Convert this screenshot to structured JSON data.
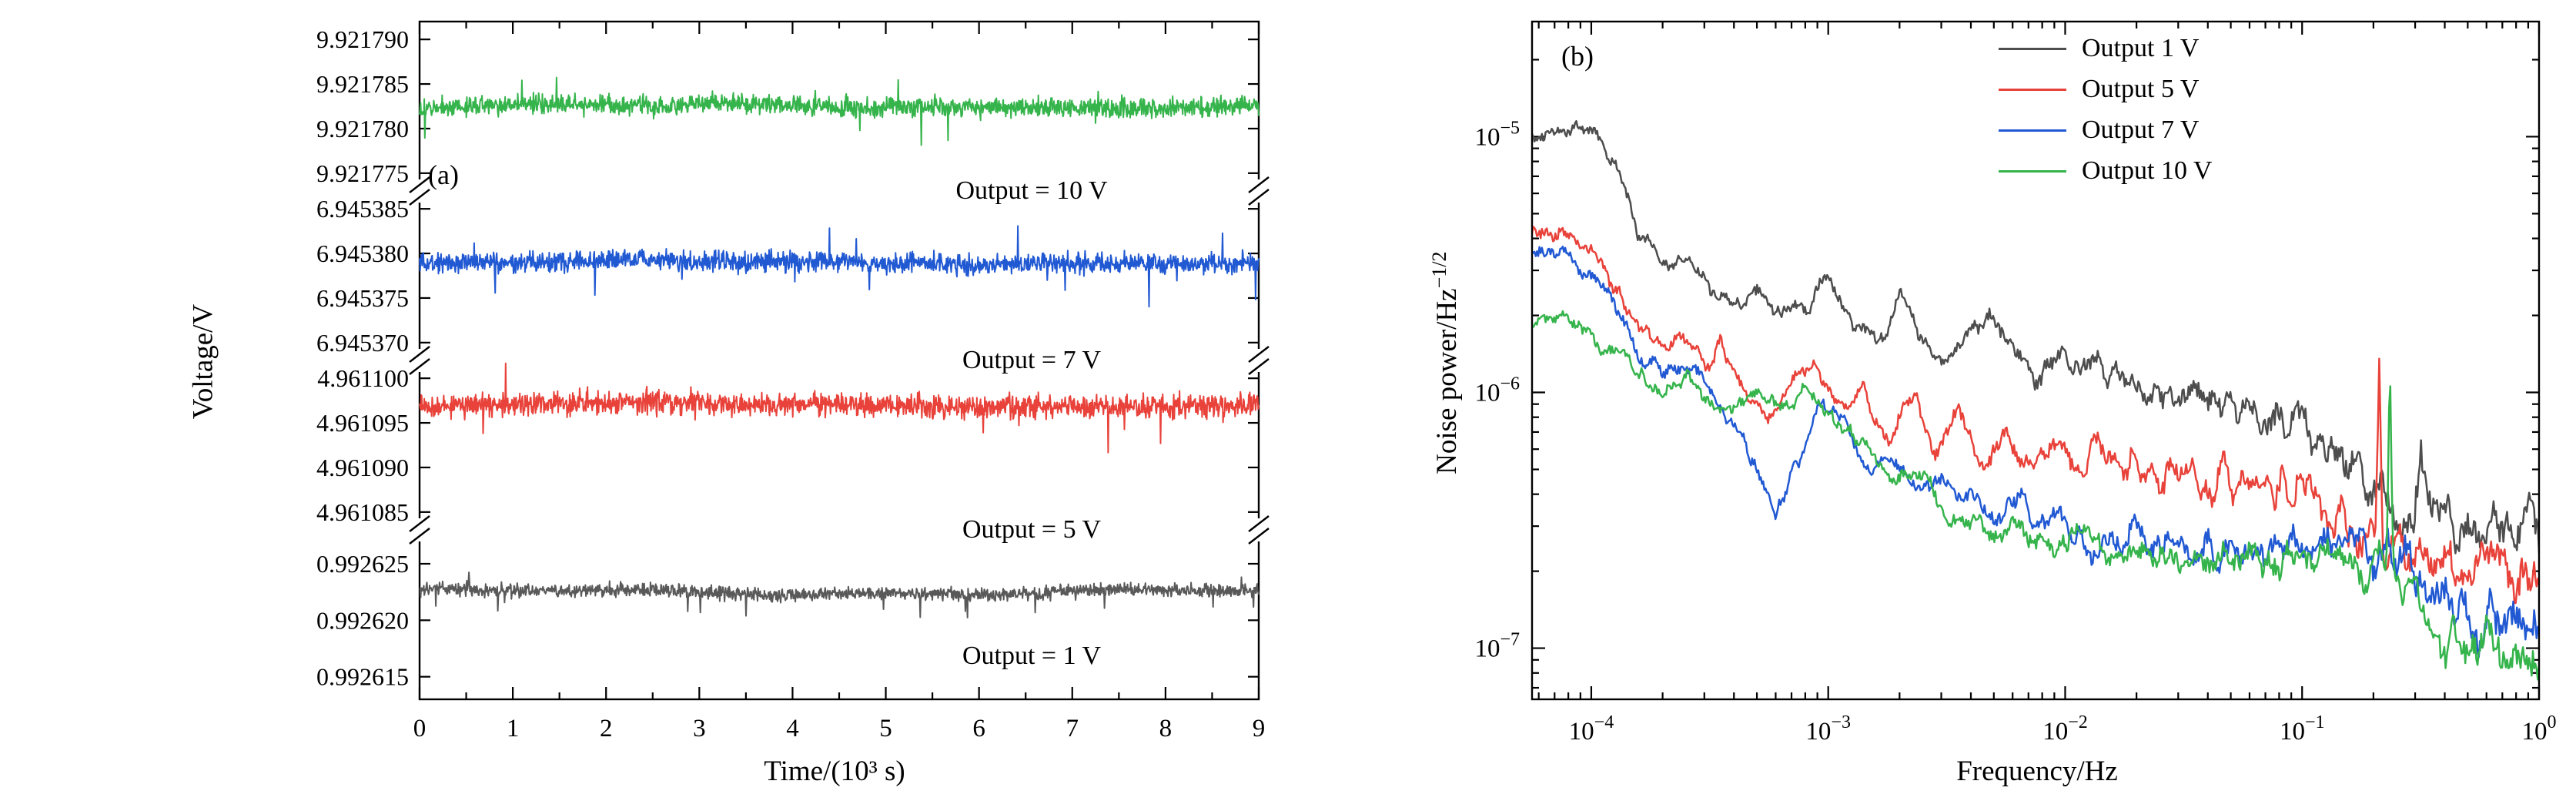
{
  "figure": {
    "background": "#ffffff",
    "description": "Two-panel noise characterization figure: (a) voltage time traces at four output levels on a broken y-axis, (b) noise power spectral density vs frequency on log-log axes"
  },
  "chart_data": [
    {
      "type": "line",
      "panel": "a",
      "tag": "(a)",
      "title": "",
      "xlabel": "Time/(10³ s)",
      "ylabel": "Voltage/V",
      "x_range": [
        0,
        9
      ],
      "x_ticks": [
        0,
        1,
        2,
        3,
        4,
        5,
        6,
        7,
        8,
        9
      ],
      "broken_axis": true,
      "segments": [
        {
          "label": "Output = 10 V",
          "color": "#36b44c",
          "mean_V": 9.9217825,
          "noise_uV": 0.55,
          "spike_down": 0.55,
          "range_V": [
            9.921773,
            9.921792
          ],
          "tick_values": [
            9.92179,
            9.921785,
            9.92178,
            9.921775
          ],
          "tick_labels": [
            "9.921790",
            "9.921785",
            "9.921780",
            "9.921775"
          ],
          "seed": 11
        },
        {
          "label": "Output = 7 V",
          "color": "#2159d3",
          "mean_V": 6.945379,
          "noise_uV": 0.55,
          "spike_down": 0.55,
          "range_V": [
            6.945368,
            6.945387
          ],
          "tick_values": [
            6.945385,
            6.94538,
            6.945375,
            6.94537
          ],
          "tick_labels": [
            "6.945385",
            "6.945380",
            "6.945375",
            "6.945370"
          ],
          "seed": 22
        },
        {
          "label": "Output = 5 V",
          "color": "#e8423a",
          "mean_V": 4.961097,
          "noise_uV": 0.65,
          "spike_down": 0.8,
          "range_V": [
            4.961083,
            4.961102
          ],
          "tick_values": [
            4.9611,
            4.961095,
            4.96109,
            4.961085
          ],
          "tick_labels": [
            "4.961100",
            "4.961095",
            "4.961090",
            "4.961085"
          ],
          "seed": 33
        },
        {
          "label": "Output = 1 V",
          "color": "#595959",
          "mean_V": 0.9926225,
          "noise_uV": 0.28,
          "spike_down": 0.6,
          "range_V": [
            0.992613,
            0.992628
          ],
          "tick_values": [
            0.992625,
            0.99262,
            0.992615
          ],
          "tick_labels": [
            "0.992625",
            "0.992620",
            "0.992615"
          ],
          "seed": 44
        }
      ]
    },
    {
      "type": "line",
      "panel": "b",
      "tag": "(b)",
      "title": "",
      "xlabel": "Frequency/Hz",
      "ylabel_base": "Noise power/Hz",
      "ylabel_sup": "−1/2",
      "x_scale": "log",
      "y_scale": "log",
      "x_log_range": [
        -4.25,
        0
      ],
      "y_log_range": [
        -7.2,
        -4.55
      ],
      "x_tick_exponents": [
        -4,
        -3,
        -2,
        -1,
        0
      ],
      "y_tick_exponents": [
        -5,
        -6,
        -7
      ],
      "legend_position": "top-right",
      "series": [
        {
          "legend": "Output 1 V",
          "color": "#4d4d4d",
          "seed": 71,
          "points_log10": [
            [
              -4.25,
              -5.02
            ],
            [
              -4.1,
              -4.99
            ],
            [
              -4.0,
              -4.98
            ],
            [
              -3.92,
              -5.05
            ],
            [
              -3.8,
              -5.35
            ],
            [
              -3.7,
              -5.52
            ],
            [
              -3.6,
              -5.46
            ],
            [
              -3.5,
              -5.58
            ],
            [
              -3.4,
              -5.66
            ],
            [
              -3.3,
              -5.6
            ],
            [
              -3.2,
              -5.72
            ],
            [
              -3.1,
              -5.65
            ],
            [
              -3.0,
              -5.55
            ],
            [
              -2.9,
              -5.72
            ],
            [
              -2.8,
              -5.82
            ],
            [
              -2.7,
              -5.62
            ],
            [
              -2.6,
              -5.8
            ],
            [
              -2.5,
              -5.88
            ],
            [
              -2.4,
              -5.78
            ],
            [
              -2.3,
              -5.72
            ],
            [
              -2.2,
              -5.88
            ],
            [
              -2.1,
              -5.92
            ],
            [
              -2.0,
              -5.88
            ],
            [
              -1.9,
              -5.92
            ],
            [
              -1.8,
              -5.95
            ],
            [
              -1.7,
              -5.98
            ],
            [
              -1.6,
              -6.0
            ],
            [
              -1.5,
              -6.02
            ],
            [
              -1.4,
              -6.02
            ],
            [
              -1.3,
              -6.05
            ],
            [
              -1.2,
              -6.08
            ],
            [
              -1.1,
              -6.1
            ],
            [
              -1.0,
              -6.1
            ],
            [
              -0.9,
              -6.18
            ],
            [
              -0.8,
              -6.28
            ],
            [
              -0.7,
              -6.38
            ],
            [
              -0.6,
              -6.45
            ],
            [
              -0.53,
              -6.46
            ],
            [
              -0.5,
              -6.15
            ],
            [
              -0.47,
              -6.48
            ],
            [
              -0.4,
              -6.5
            ],
            [
              -0.3,
              -6.52
            ],
            [
              -0.2,
              -6.5
            ],
            [
              -0.1,
              -6.52
            ],
            [
              0.0,
              -6.52
            ]
          ]
        },
        {
          "legend": "Output 5 V",
          "color": "#e8423a",
          "seed": 72,
          "points_log10": [
            [
              -4.25,
              -5.37
            ],
            [
              -4.1,
              -5.38
            ],
            [
              -4.0,
              -5.44
            ],
            [
              -3.9,
              -5.58
            ],
            [
              -3.8,
              -5.72
            ],
            [
              -3.7,
              -5.82
            ],
            [
              -3.6,
              -5.78
            ],
            [
              -3.52,
              -5.88
            ],
            [
              -3.45,
              -5.8
            ],
            [
              -3.35,
              -6.0
            ],
            [
              -3.25,
              -6.1
            ],
            [
              -3.15,
              -5.95
            ],
            [
              -3.05,
              -5.9
            ],
            [
              -2.95,
              -6.08
            ],
            [
              -2.85,
              -5.98
            ],
            [
              -2.75,
              -6.18
            ],
            [
              -2.65,
              -6.02
            ],
            [
              -2.55,
              -6.22
            ],
            [
              -2.45,
              -6.08
            ],
            [
              -2.35,
              -6.28
            ],
            [
              -2.25,
              -6.15
            ],
            [
              -2.15,
              -6.3
            ],
            [
              -2.05,
              -6.18
            ],
            [
              -1.95,
              -6.32
            ],
            [
              -1.85,
              -6.2
            ],
            [
              -1.75,
              -6.32
            ],
            [
              -1.65,
              -6.25
            ],
            [
              -1.55,
              -6.35
            ],
            [
              -1.45,
              -6.28
            ],
            [
              -1.35,
              -6.38
            ],
            [
              -1.25,
              -6.32
            ],
            [
              -1.15,
              -6.4
            ],
            [
              -1.05,
              -6.38
            ],
            [
              -0.95,
              -6.45
            ],
            [
              -0.85,
              -6.5
            ],
            [
              -0.75,
              -6.55
            ],
            [
              -0.69,
              -6.56
            ],
            [
              -0.675,
              -5.92
            ],
            [
              -0.66,
              -6.57
            ],
            [
              -0.55,
              -6.6
            ],
            [
              -0.45,
              -6.65
            ],
            [
              -0.35,
              -6.68
            ],
            [
              -0.25,
              -6.7
            ],
            [
              -0.15,
              -6.72
            ],
            [
              0.0,
              -6.74
            ]
          ]
        },
        {
          "legend": "Output 7 V",
          "color": "#2159d3",
          "seed": 73,
          "points_log10": [
            [
              -4.25,
              -5.44
            ],
            [
              -4.1,
              -5.47
            ],
            [
              -4.0,
              -5.55
            ],
            [
              -3.9,
              -5.68
            ],
            [
              -3.8,
              -5.82
            ],
            [
              -3.7,
              -5.92
            ],
            [
              -3.6,
              -5.88
            ],
            [
              -3.5,
              -6.0
            ],
            [
              -3.4,
              -6.12
            ],
            [
              -3.3,
              -6.3
            ],
            [
              -3.22,
              -6.48
            ],
            [
              -3.12,
              -6.25
            ],
            [
              -3.02,
              -6.02
            ],
            [
              -2.92,
              -6.15
            ],
            [
              -2.82,
              -6.3
            ],
            [
              -2.72,
              -6.25
            ],
            [
              -2.62,
              -6.38
            ],
            [
              -2.52,
              -6.3
            ],
            [
              -2.42,
              -6.42
            ],
            [
              -2.32,
              -6.48
            ],
            [
              -2.22,
              -6.42
            ],
            [
              -2.12,
              -6.52
            ],
            [
              -2.02,
              -6.48
            ],
            [
              -1.92,
              -6.55
            ],
            [
              -1.82,
              -6.58
            ],
            [
              -1.72,
              -6.52
            ],
            [
              -1.62,
              -6.6
            ],
            [
              -1.52,
              -6.58
            ],
            [
              -1.42,
              -6.62
            ],
            [
              -1.32,
              -6.58
            ],
            [
              -1.22,
              -6.62
            ],
            [
              -1.12,
              -6.6
            ],
            [
              -1.02,
              -6.57
            ],
            [
              -0.92,
              -6.62
            ],
            [
              -0.82,
              -6.58
            ],
            [
              -0.72,
              -6.62
            ],
            [
              -0.62,
              -6.66
            ],
            [
              -0.52,
              -6.72
            ],
            [
              -0.42,
              -6.82
            ],
            [
              -0.32,
              -6.88
            ],
            [
              -0.22,
              -6.92
            ],
            [
              -0.12,
              -6.94
            ],
            [
              0.0,
              -6.96
            ]
          ]
        },
        {
          "legend": "Output 10 V",
          "color": "#36b44c",
          "seed": 74,
          "points_log10": [
            [
              -4.25,
              -5.68
            ],
            [
              -4.1,
              -5.71
            ],
            [
              -4.0,
              -5.76
            ],
            [
              -3.9,
              -5.85
            ],
            [
              -3.8,
              -5.93
            ],
            [
              -3.7,
              -6.0
            ],
            [
              -3.6,
              -5.95
            ],
            [
              -3.5,
              -6.02
            ],
            [
              -3.4,
              -6.08
            ],
            [
              -3.3,
              -6.0
            ],
            [
              -3.2,
              -6.06
            ],
            [
              -3.1,
              -5.98
            ],
            [
              -3.0,
              -6.06
            ],
            [
              -2.9,
              -6.16
            ],
            [
              -2.8,
              -6.26
            ],
            [
              -2.7,
              -6.36
            ],
            [
              -2.6,
              -6.32
            ],
            [
              -2.5,
              -6.46
            ],
            [
              -2.4,
              -6.52
            ],
            [
              -2.3,
              -6.56
            ],
            [
              -2.2,
              -6.5
            ],
            [
              -2.1,
              -6.56
            ],
            [
              -2.0,
              -6.6
            ],
            [
              -1.9,
              -6.56
            ],
            [
              -1.8,
              -6.62
            ],
            [
              -1.7,
              -6.6
            ],
            [
              -1.6,
              -6.64
            ],
            [
              -1.5,
              -6.62
            ],
            [
              -1.4,
              -6.66
            ],
            [
              -1.3,
              -6.66
            ],
            [
              -1.2,
              -6.64
            ],
            [
              -1.1,
              -6.66
            ],
            [
              -1.0,
              -6.64
            ],
            [
              -0.9,
              -6.66
            ],
            [
              -0.8,
              -6.64
            ],
            [
              -0.7,
              -6.66
            ],
            [
              -0.645,
              -6.67
            ],
            [
              -0.63,
              -5.85
            ],
            [
              -0.615,
              -6.7
            ],
            [
              -0.5,
              -6.88
            ],
            [
              -0.4,
              -6.94
            ],
            [
              -0.3,
              -7.0
            ],
            [
              -0.2,
              -7.02
            ],
            [
              -0.1,
              -7.05
            ],
            [
              0.0,
              -7.07
            ]
          ]
        }
      ]
    }
  ]
}
